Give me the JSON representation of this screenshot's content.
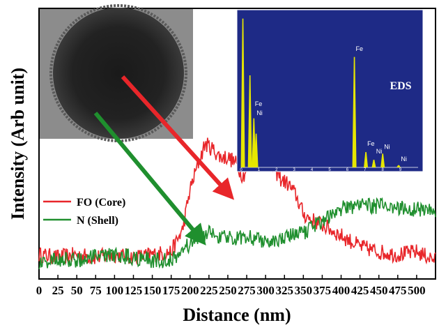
{
  "chart_data": {
    "type": "line",
    "xlabel": "Distance (nm)",
    "ylabel": "Intensity (Arb unit)",
    "xlim": [
      0,
      525
    ],
    "x_ticks": [
      "0",
      "25",
      "50",
      "75",
      "100",
      "125",
      "150",
      "175",
      "200",
      "225",
      "250",
      "275",
      "300",
      "325",
      "350",
      "375",
      "400",
      "425",
      "450",
      "475",
      "500"
    ],
    "ylim": [
      0,
      1
    ],
    "legend_position": "left",
    "colors": {
      "fo": "#e8262a",
      "n": "#1f8f2e",
      "eds_bg": "#1e2a86",
      "eds_peak": "#e6e600",
      "arrow_red": "#e8262a",
      "arrow_green": "#1f8f2e"
    },
    "series": [
      {
        "name": "FO (Core)",
        "key": "fo",
        "x": [
          0,
          25,
          50,
          75,
          100,
          125,
          150,
          175,
          190,
          200,
          210,
          220,
          230,
          240,
          250,
          260,
          270,
          280,
          290,
          300,
          310,
          320,
          330,
          340,
          350,
          360,
          375,
          400,
          425,
          450,
          475,
          500,
          525
        ],
        "values": [
          0.09,
          0.08,
          0.09,
          0.08,
          0.09,
          0.08,
          0.09,
          0.1,
          0.18,
          0.33,
          0.42,
          0.5,
          0.48,
          0.45,
          0.45,
          0.43,
          0.38,
          0.43,
          0.52,
          0.5,
          0.41,
          0.37,
          0.35,
          0.31,
          0.24,
          0.22,
          0.2,
          0.16,
          0.12,
          0.1,
          0.09,
          0.1,
          0.07
        ]
      },
      {
        "name": "N (Shell)",
        "key": "n",
        "x": [
          0,
          25,
          50,
          75,
          100,
          125,
          150,
          175,
          200,
          225,
          250,
          275,
          300,
          325,
          350,
          375,
          400,
          425,
          450,
          475,
          500,
          525
        ],
        "values": [
          0.06,
          0.07,
          0.07,
          0.08,
          0.09,
          0.08,
          0.07,
          0.07,
          0.13,
          0.17,
          0.15,
          0.16,
          0.14,
          0.15,
          0.17,
          0.22,
          0.26,
          0.27,
          0.27,
          0.26,
          0.26,
          0.25
        ]
      }
    ]
  },
  "eds_inset": {
    "title": "EDS",
    "x_ticks": [
      "0",
      "1",
      "2",
      "3",
      "4",
      "5",
      "6",
      "7",
      "8",
      "9"
    ],
    "xlim": [
      0,
      10
    ],
    "peaks": [
      {
        "x": 0.1,
        "h": 0.97
      },
      {
        "x": 0.5,
        "h": 0.6
      },
      {
        "x": 0.72,
        "h": 0.32
      },
      {
        "x": 0.85,
        "h": 0.22
      },
      {
        "x": 6.4,
        "h": 0.72
      },
      {
        "x": 7.05,
        "h": 0.1
      },
      {
        "x": 7.5,
        "h": 0.05
      },
      {
        "x": 8.0,
        "h": 0.09
      },
      {
        "x": 8.9,
        "h": 0.015
      }
    ],
    "labels": [
      {
        "text": "Fe",
        "x": 0.7,
        "h": 0.4
      },
      {
        "text": "Ni",
        "x": 0.8,
        "h": 0.34
      },
      {
        "text": "Fe",
        "x": 6.4,
        "h": 0.76
      },
      {
        "text": "Fe",
        "x": 7.05,
        "h": 0.14
      },
      {
        "text": "Ni",
        "x": 7.55,
        "h": 0.09
      },
      {
        "text": "Ni",
        "x": 8.0,
        "h": 0.12
      },
      {
        "text": "Ni",
        "x": 8.95,
        "h": 0.04
      }
    ]
  },
  "tem_image": {
    "icon": "nanoparticle-micrograph"
  }
}
